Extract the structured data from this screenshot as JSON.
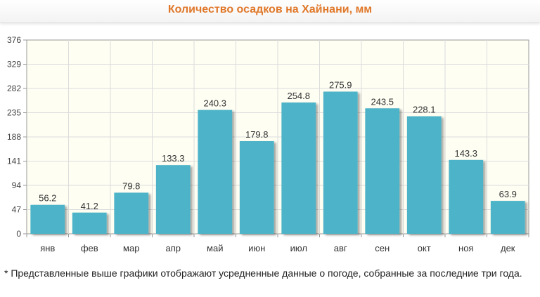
{
  "header": {
    "title": "Количество осадков на Хайнани, мм"
  },
  "chart_data": {
    "type": "bar",
    "title": "Количество осадков на Хайнани, мм",
    "categories": [
      "янв",
      "фев",
      "мар",
      "апр",
      "май",
      "июн",
      "июл",
      "авг",
      "сен",
      "окт",
      "ноя",
      "дек"
    ],
    "values": [
      56.2,
      41.2,
      79.8,
      133.3,
      240.3,
      179.8,
      254.8,
      275.9,
      243.5,
      228.1,
      143.3,
      63.9
    ],
    "value_labels": [
      "56.2",
      "41.2",
      "79.8",
      "133.3",
      "240.3",
      "179.8",
      "254.8",
      "275.9",
      "243.5",
      "228.1",
      "143.3",
      "63.9"
    ],
    "yticks": [
      0,
      47,
      94,
      141,
      188,
      235,
      282,
      329,
      376
    ],
    "ylim": [
      0,
      376
    ],
    "grid": true,
    "bar_color": "#4db3c8",
    "xlabel": "",
    "ylabel": ""
  },
  "footnote": "* Представленные выше графики отображают усредненные данные о погоде, собранные за последние три года."
}
